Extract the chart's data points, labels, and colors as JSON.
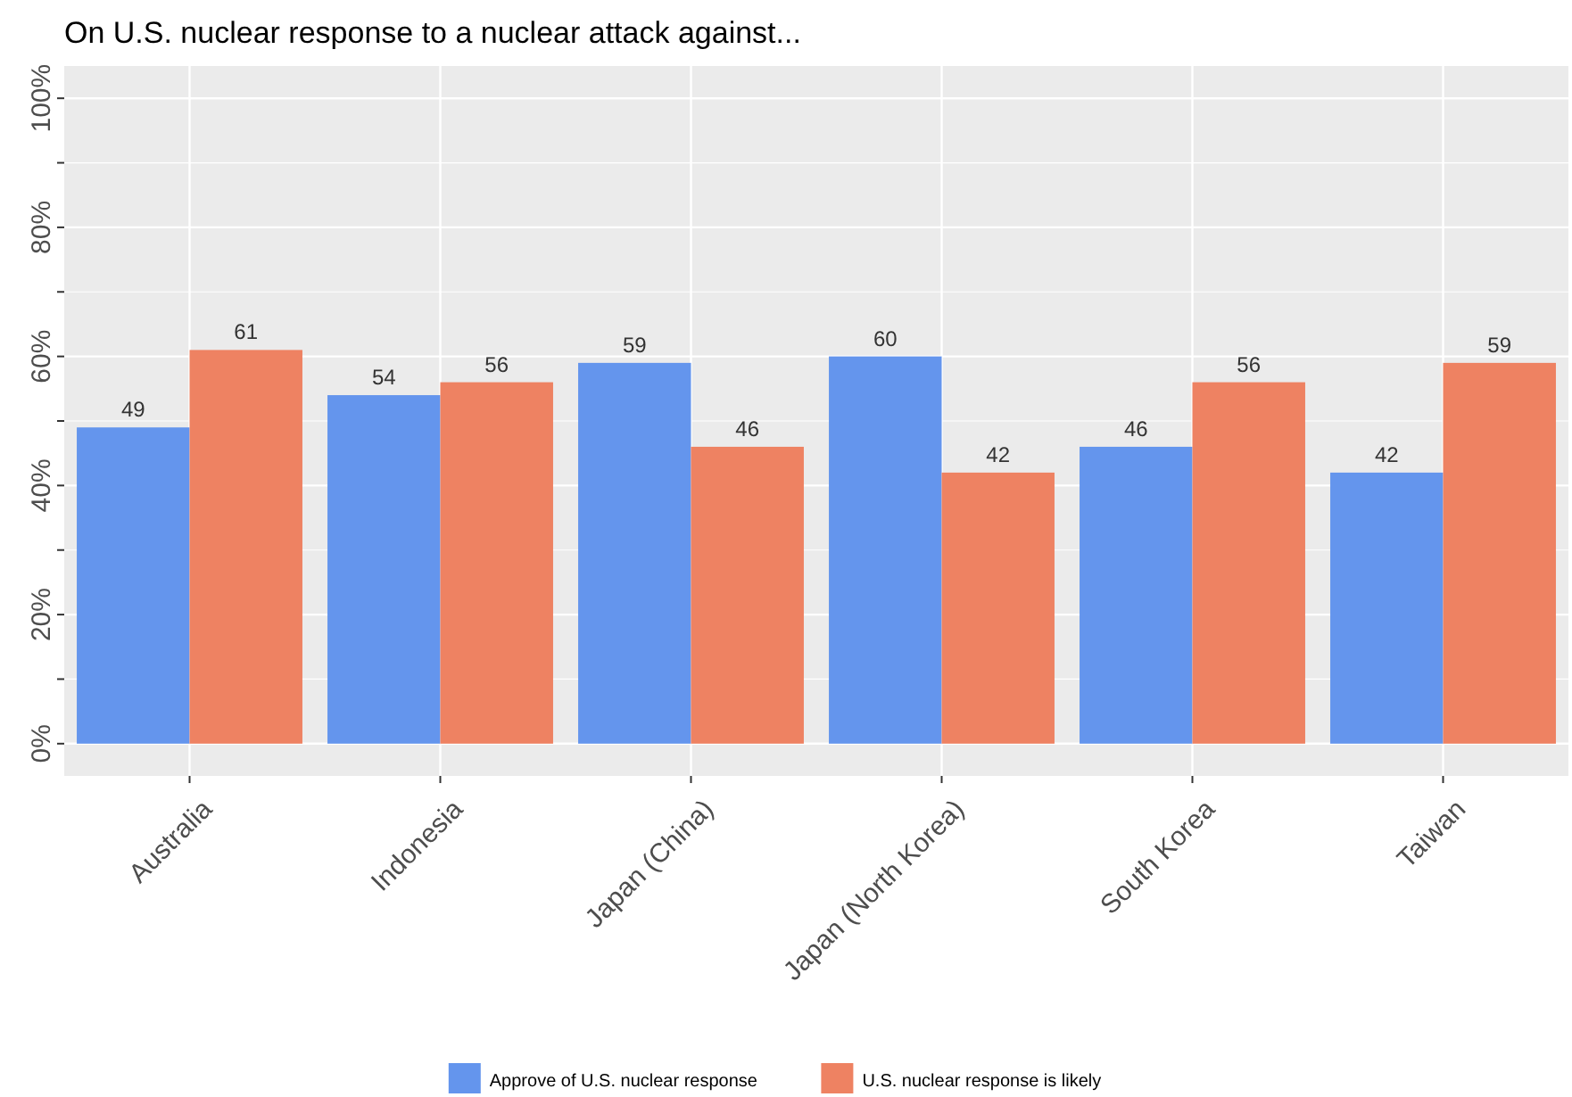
{
  "chart_data": {
    "type": "bar",
    "title": "On U.S. nuclear response to a nuclear attack against...",
    "categories": [
      "Australia",
      "Indonesia",
      "Japan (China)",
      "Japan (North Korea)",
      "South Korea",
      "Taiwan"
    ],
    "series": [
      {
        "name": "Approve of U.S. nuclear response",
        "color": "#6495ed",
        "values": [
          49,
          54,
          59,
          60,
          46,
          42
        ]
      },
      {
        "name": "U.S. nuclear response is likely",
        "color": "#ee8262",
        "values": [
          61,
          56,
          46,
          42,
          56,
          59
        ]
      }
    ],
    "ylim": [
      -5,
      105
    ],
    "yticks": [
      {
        "value": 0,
        "label": "0%"
      },
      {
        "value": 10,
        "label": null
      },
      {
        "value": 20,
        "label": "20%"
      },
      {
        "value": 30,
        "label": null
      },
      {
        "value": 40,
        "label": "40%"
      },
      {
        "value": 50,
        "label": null
      },
      {
        "value": 60,
        "label": "60%"
      },
      {
        "value": 70,
        "label": null
      },
      {
        "value": 80,
        "label": "80%"
      },
      {
        "value": 90,
        "label": null
      },
      {
        "value": 100,
        "label": "100%"
      }
    ],
    "grid": true,
    "legend": "bottom",
    "data_labels": true
  }
}
